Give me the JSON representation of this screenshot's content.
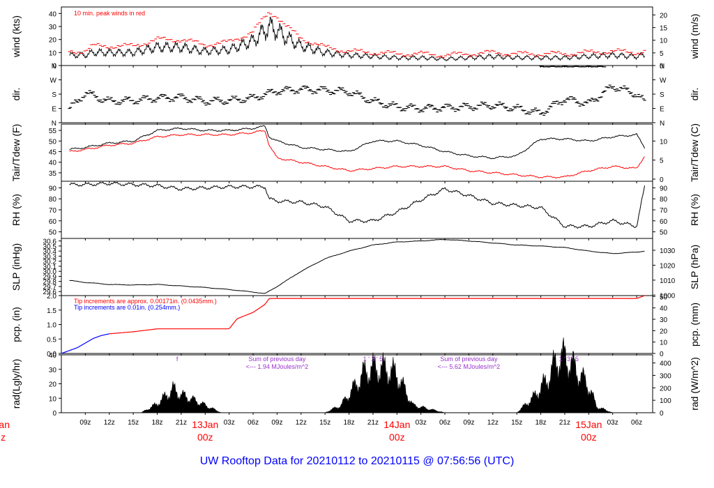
{
  "footer": {
    "title": "UW Rooftop Data for 20210112  to  20210115 @ 07:56:56  (UTC)",
    "color": "#0000ff"
  },
  "colors": {
    "trace": "#000000",
    "peak": "#ff0000",
    "dewpoint": "#ff0000",
    "rain_light": "#0000ff",
    "annot": "#9932cc",
    "day_label": "#ff0000"
  },
  "time_axis": {
    "tick_labels": [
      "09z",
      "12z",
      "15z",
      "18z",
      "21z",
      "00z",
      "03z",
      "06z",
      "09z",
      "12z",
      "15z",
      "18z",
      "21z",
      "00z",
      "03z",
      "06z",
      "09z",
      "12z",
      "15z",
      "18z",
      "21z",
      "00z",
      "03z",
      "06z"
    ],
    "day_labels": [
      {
        "date": "13Jan",
        "hour": "00z",
        "index": 5
      },
      {
        "date": "14Jan",
        "hour": "00z",
        "index": 13
      },
      {
        "date": "15Jan",
        "hour": "00z",
        "index": 21
      }
    ],
    "left_clipped": {
      "date": "an",
      "hour": "z"
    }
  },
  "panels": {
    "wind": {
      "ylabel_left": "wind (kts)",
      "ylabel_right": "wind (m/s)",
      "annotation": "10 min. peak winds in red",
      "left_ticks": [
        "0",
        "10",
        "20",
        "30",
        "40"
      ],
      "right_ticks": [
        "0",
        "5",
        "10",
        "15",
        "20"
      ]
    },
    "dir": {
      "ylabel_left": "dir.",
      "ylabel_right": "dir.",
      "left_ticks": [
        "N",
        "E",
        "S",
        "W",
        "N"
      ],
      "right_ticks": [
        "N",
        "E",
        "S",
        "W",
        "N"
      ]
    },
    "temp": {
      "ylabel_left": "Tair/Tdew (F)",
      "ylabel_right": "Tair/Tdew (C)",
      "left_ticks": [
        "35",
        "40",
        "45",
        "50",
        "55"
      ],
      "right_ticks": [
        "0",
        "5",
        "10"
      ]
    },
    "rh": {
      "ylabel_left": "RH (%)",
      "ylabel_right": "RH (%)",
      "left_ticks": [
        "50",
        "60",
        "70",
        "80",
        "90"
      ],
      "right_ticks": [
        "50",
        "60",
        "70",
        "80",
        "90"
      ]
    },
    "slp": {
      "ylabel_left": "SLP (inHg)",
      "ylabel_right": "SLP (hPa)",
      "left_ticks": [
        "29.6",
        "29.7",
        "29.8",
        "29.9",
        "30.0",
        "30.1",
        "30.2",
        "30.3",
        "30.4",
        "30.5",
        "30.6"
      ],
      "right_ticks": [
        "1000",
        "1010",
        "1020",
        "1030"
      ]
    },
    "pcp": {
      "ylabel_left": "pcp. (in)",
      "ylabel_right": "pcp. (mm)",
      "left_ticks": [
        "0.0",
        "0.5",
        "1.0",
        "1.5",
        "2.0"
      ],
      "right_ticks": [
        "0",
        "10",
        "20",
        "30",
        "40",
        "50"
      ],
      "note_red": "Tip increments are approx. 0.00171in. (0.0435mm.)",
      "note_blue": "Tip increments are 0.01in. (0.254mm.)"
    },
    "rad": {
      "ylabel_left": "rad(Lgly/hr)",
      "ylabel_right": "rad (W/m^2)",
      "left_ticks": [
        "0",
        "10",
        "20",
        "30",
        "40"
      ],
      "right_ticks": [
        "0",
        "100",
        "200",
        "300",
        "400"
      ],
      "sum1_line1": "Sum of previous day",
      "sum1_line2": "<--- 1.94 MJoules/m^2",
      "sum2_line1": "Sum of previous day",
      "sum2_line2": "<--- 5.62 MJoules/m^2",
      "markers1": "f",
      "markers2": "1 ' 3 ' 5",
      "markers3": "1 ' 3 ' 5",
      "markers4": "1 ' 3 '  5"
    }
  },
  "chart_data": [
    {
      "type": "line",
      "title": "10 min. peak winds in red",
      "ylabel": "wind (kts)",
      "ylabel_right": "wind (m/s)",
      "ylim": [
        0,
        45
      ],
      "x": [
        7,
        9,
        10,
        12,
        15,
        18,
        21,
        24,
        27,
        30,
        32,
        33,
        34,
        36,
        39,
        42,
        45,
        48,
        51,
        54,
        57,
        60,
        63,
        66,
        69,
        72,
        75,
        78,
        79
      ],
      "series": [
        {
          "name": "wind",
          "values": [
            8,
            8,
            10,
            10,
            10,
            14,
            14,
            11,
            12,
            19,
            30,
            27,
            22,
            15,
            10,
            8,
            7,
            6,
            6,
            5,
            6,
            7,
            6,
            6,
            6,
            7,
            8,
            7,
            8
          ]
        },
        {
          "name": "peak",
          "values": [
            11,
            11,
            15,
            15,
            15,
            20,
            20,
            16,
            18,
            26,
            41,
            38,
            31,
            21,
            14,
            11,
            10,
            9,
            9,
            8,
            9,
            10,
            9,
            9,
            9,
            10,
            11,
            10,
            11
          ]
        }
      ]
    },
    {
      "type": "scatter",
      "ylabel": "dir.",
      "y_categories": [
        "N",
        "E",
        "S",
        "W",
        "N"
      ],
      "ylim": [
        0,
        360
      ],
      "x": [
        7,
        8,
        9,
        10,
        11,
        12,
        15,
        18,
        21,
        24,
        27,
        30,
        33,
        36,
        39,
        42,
        45,
        48,
        51,
        54,
        57,
        60,
        63,
        66,
        69,
        72,
        75,
        78,
        79
      ],
      "values": [
        90,
        130,
        190,
        170,
        150,
        135,
        140,
        155,
        160,
        135,
        140,
        155,
        200,
        210,
        205,
        195,
        135,
        100,
        90,
        95,
        100,
        110,
        90,
        60,
        150,
        120,
        230,
        180,
        130
      ]
    },
    {
      "type": "line",
      "ylabel": "Tair/Tdew (F)",
      "ylabel_right": "Tair/Tdew (C)",
      "ylim": [
        31,
        58
      ],
      "x": [
        7,
        9,
        12,
        15,
        18,
        21,
        24,
        27,
        30,
        31.5,
        32,
        33,
        36,
        39,
        42,
        45,
        48,
        51,
        54,
        57,
        60,
        63,
        66,
        69,
        72,
        75,
        78,
        79
      ],
      "series": [
        {
          "name": "Tair",
          "values": [
            46,
            47,
            49,
            50,
            55,
            56,
            55,
            55,
            56,
            57,
            52,
            50,
            47,
            46,
            45,
            50,
            50,
            48,
            45,
            43,
            42,
            43,
            51,
            51,
            50,
            52,
            53,
            47
          ]
        },
        {
          "name": "Tdew",
          "values": [
            45,
            46,
            48,
            49,
            52,
            53,
            53,
            53,
            54,
            55,
            48,
            42,
            40,
            38,
            36,
            37,
            38,
            38,
            38,
            36,
            35,
            34,
            33,
            33,
            36,
            38,
            37,
            43
          ]
        }
      ]
    },
    {
      "type": "line",
      "ylabel": "RH (%)",
      "ylabel_right": "RH (%)",
      "ylim": [
        44,
        96
      ],
      "x": [
        7,
        9,
        12,
        15,
        18,
        21,
        24,
        27,
        30,
        31.5,
        32,
        33,
        36,
        39,
        42,
        45,
        48,
        51,
        54,
        57,
        60,
        63,
        66,
        69,
        72,
        75,
        78,
        79
      ],
      "values": [
        93,
        93,
        94,
        93,
        92,
        89,
        90,
        91,
        91,
        91,
        80,
        78,
        77,
        73,
        60,
        60,
        68,
        79,
        89,
        83,
        76,
        74,
        72,
        55,
        55,
        60,
        55,
        91
      ]
    },
    {
      "type": "line",
      "ylabel": "SLP (inHg)",
      "ylabel_right": "SLP (hPa)",
      "ylim": [
        29.52,
        30.65
      ],
      "x": [
        7,
        9,
        12,
        15,
        18,
        21,
        24,
        27,
        30,
        31.5,
        33,
        36,
        39,
        42,
        45,
        48,
        51,
        54,
        57,
        60,
        63,
        66,
        69,
        72,
        75,
        78,
        79
      ],
      "values": [
        29.82,
        29.78,
        29.74,
        29.73,
        29.74,
        29.71,
        29.68,
        29.64,
        29.59,
        29.56,
        29.7,
        30.0,
        30.25,
        30.4,
        30.52,
        30.58,
        30.6,
        30.63,
        30.6,
        30.56,
        30.52,
        30.5,
        30.47,
        30.4,
        30.35,
        30.38,
        30.4
      ]
    },
    {
      "type": "line",
      "ylabel": "pcp. (in)",
      "ylabel_right": "pcp. (mm)",
      "ylim": [
        0,
        2.0
      ],
      "x": [
        6,
        8,
        10,
        11,
        12,
        15,
        18,
        21,
        24,
        27,
        28,
        30,
        31.5,
        32,
        33,
        36,
        48,
        60,
        72,
        78,
        79
      ],
      "values": [
        0,
        0.2,
        0.52,
        0.62,
        0.68,
        0.75,
        0.85,
        0.85,
        0.85,
        0.85,
        1.2,
        1.42,
        1.7,
        1.9,
        1.9,
        1.9,
        1.9,
        1.9,
        1.9,
        1.9,
        2.0
      ]
    },
    {
      "type": "area",
      "ylabel": "rad(Lgly/hr)",
      "ylabel_right": "rad (W/m^2)",
      "ylim": [
        0,
        40
      ],
      "x": [
        16,
        18,
        20,
        21,
        22,
        24,
        26,
        39,
        41,
        43,
        44,
        45,
        46,
        47,
        48,
        50,
        54,
        63,
        65,
        67,
        68,
        69,
        70,
        71,
        72,
        73,
        75
      ],
      "values": [
        0,
        6,
        16,
        12,
        10,
        5,
        0,
        0,
        5,
        20,
        28,
        30,
        30,
        29,
        26,
        5,
        0,
        0,
        10,
        24,
        36,
        38,
        32,
        25,
        18,
        4,
        0
      ]
    }
  ]
}
